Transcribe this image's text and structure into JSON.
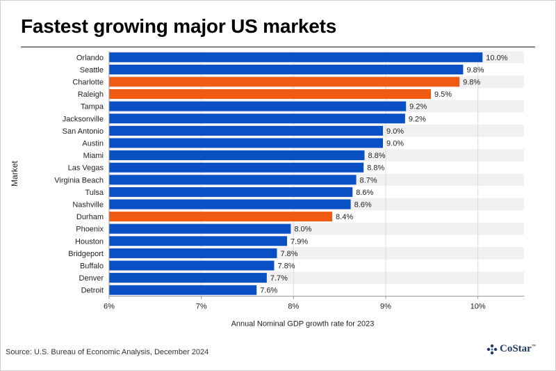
{
  "title": "Fastest growing major US markets",
  "source": "Source: U.S. Bureau of Economic Analysis, December 2024",
  "logo": {
    "text": "CoStar",
    "tm": "™"
  },
  "colors": {
    "default_bar": "#0a4fc4",
    "highlight_bar": "#f05a12",
    "band": "#f1f1f1",
    "grid": "#dcdcdc",
    "axis": "#999999"
  },
  "chart_data": {
    "type": "bar",
    "orientation": "horizontal",
    "xlabel": "Annual Nominal GDP growth rate for 2023",
    "ylabel": "Market",
    "xlim": [
      6,
      10.5
    ],
    "xticks": [
      6,
      7,
      8,
      9,
      10
    ],
    "xtick_labels": [
      "6%",
      "7%",
      "8%",
      "9%",
      "10%"
    ],
    "grid": true,
    "categories": [
      "Orlando",
      "Seattle",
      "Charlotte",
      "Raleigh",
      "Tampa",
      "Jacksonville",
      "San Antonio",
      "Austin",
      "Miami",
      "Las Vegas",
      "Virginia Beach",
      "Tulsa",
      "Nashville",
      "Durham",
      "Phoenix",
      "Houston",
      "Bridgeport",
      "Buffalo",
      "Denver",
      "Detroit"
    ],
    "values": [
      10.05,
      9.84,
      9.8,
      9.49,
      9.22,
      9.21,
      8.97,
      8.97,
      8.77,
      8.76,
      8.68,
      8.64,
      8.62,
      8.42,
      7.97,
      7.93,
      7.82,
      7.79,
      7.71,
      7.6
    ],
    "labels": [
      "10.0%",
      "9.8%",
      "9.8%",
      "9.5%",
      "9.2%",
      "9.2%",
      "9.0%",
      "9.0%",
      "8.8%",
      "8.8%",
      "8.7%",
      "8.6%",
      "8.6%",
      "8.4%",
      "8.0%",
      "7.9%",
      "7.8%",
      "7.8%",
      "7.7%",
      "7.6%"
    ],
    "highlighted": [
      "Charlotte",
      "Raleigh",
      "Durham"
    ]
  }
}
